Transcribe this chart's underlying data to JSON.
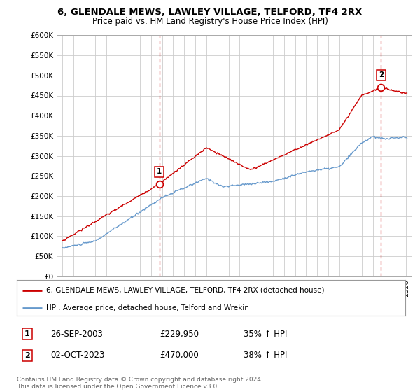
{
  "title": "6, GLENDALE MEWS, LAWLEY VILLAGE, TELFORD, TF4 2RX",
  "subtitle": "Price paid vs. HM Land Registry's House Price Index (HPI)",
  "ylim": [
    0,
    600000
  ],
  "yticks": [
    0,
    50000,
    100000,
    150000,
    200000,
    250000,
    300000,
    350000,
    400000,
    450000,
    500000,
    550000,
    600000
  ],
  "ytick_labels": [
    "£0",
    "£50K",
    "£100K",
    "£150K",
    "£200K",
    "£250K",
    "£300K",
    "£350K",
    "£400K",
    "£450K",
    "£500K",
    "£550K",
    "£600K"
  ],
  "xlim_left": 1994.5,
  "xlim_right": 2026.5,
  "marker1_x": 2003.75,
  "marker1_y": 229950,
  "marker1_label": "1",
  "marker2_x": 2023.75,
  "marker2_y": 470000,
  "marker2_label": "2",
  "sale1_date": "26-SEP-2003",
  "sale1_price": "£229,950",
  "sale1_hpi": "35% ↑ HPI",
  "sale2_date": "02-OCT-2023",
  "sale2_price": "£470,000",
  "sale2_hpi": "38% ↑ HPI",
  "legend_line1": "6, GLENDALE MEWS, LAWLEY VILLAGE, TELFORD, TF4 2RX (detached house)",
  "legend_line2": "HPI: Average price, detached house, Telford and Wrekin",
  "footer": "Contains HM Land Registry data © Crown copyright and database right 2024.\nThis data is licensed under the Open Government Licence v3.0.",
  "line_color_red": "#cc0000",
  "line_color_blue": "#6699cc",
  "background_color": "#ffffff",
  "grid_color": "#cccccc",
  "vline_color": "#cc0000",
  "title_fontsize": 9.5,
  "subtitle_fontsize": 8.5
}
